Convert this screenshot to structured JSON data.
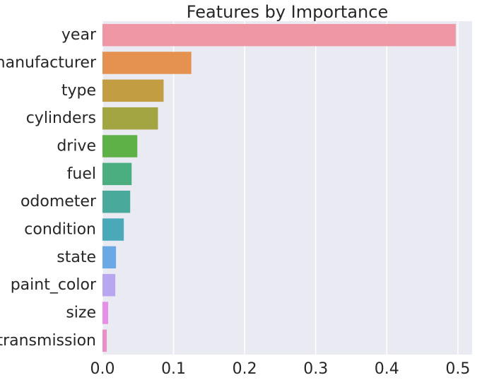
{
  "chart_data": {
    "type": "bar",
    "orientation": "horizontal",
    "title": "Features by Importance",
    "xlabel": "",
    "ylabel": "",
    "categories": [
      "year",
      "manufacturer",
      "type",
      "cylinders",
      "drive",
      "fuel",
      "odometer",
      "condition",
      "state",
      "paint_color",
      "size",
      "transmission"
    ],
    "values": [
      0.497,
      0.125,
      0.086,
      0.078,
      0.049,
      0.041,
      0.039,
      0.03,
      0.019,
      0.018,
      0.008,
      0.006
    ],
    "colors": [
      "#ef97a4",
      "#e5914f",
      "#c39d42",
      "#a3a442",
      "#5db147",
      "#4aae81",
      "#49aa9c",
      "#4aa9b9",
      "#6aa9e6",
      "#b8a6f0",
      "#e78fe6",
      "#e98fc7"
    ],
    "xlim": [
      0,
      0.52
    ],
    "xticks": [
      0.0,
      0.1,
      0.2,
      0.3,
      0.4,
      0.5
    ],
    "xtick_labels": [
      "0.0",
      "0.1",
      "0.2",
      "0.3",
      "0.4",
      "0.5"
    ],
    "grid": true,
    "background": "#eaeaf2",
    "grid_color": "#ffffff"
  }
}
